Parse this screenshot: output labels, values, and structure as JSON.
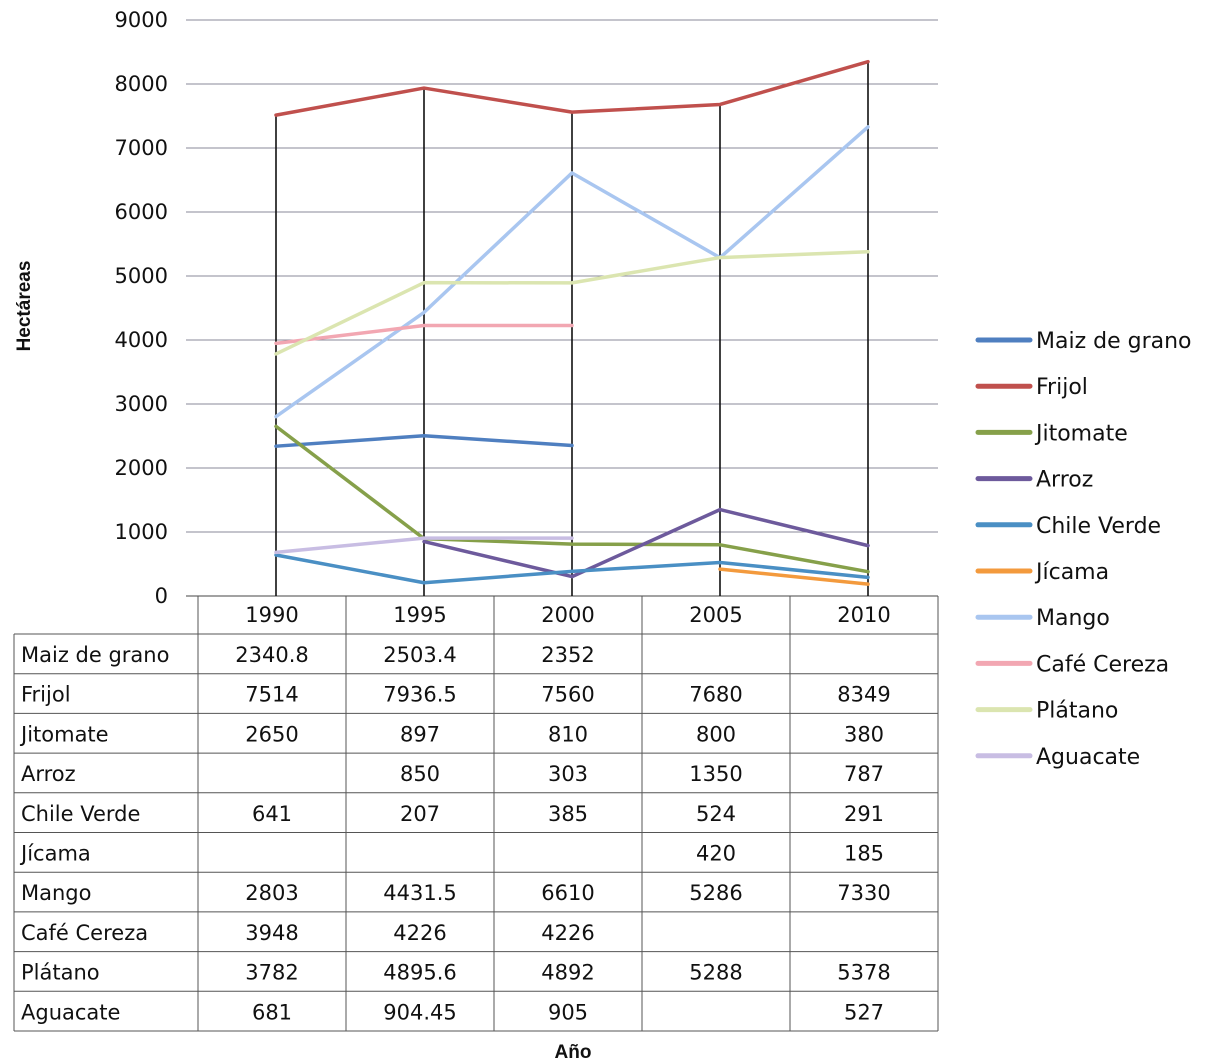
{
  "chart_data": {
    "type": "line",
    "title": "",
    "xlabel": "Año",
    "ylabel": "Hectáreas",
    "categories": [
      "1990",
      "1995",
      "2000",
      "2005",
      "2010"
    ],
    "ylim": [
      0,
      9000
    ],
    "yticks": [
      "0",
      "1000",
      "2000",
      "3000",
      "4000",
      "5000",
      "6000",
      "7000",
      "8000",
      "9000"
    ],
    "grid": true,
    "legend_position": "right",
    "data_table": true,
    "series": [
      {
        "name": "Maiz de grano",
        "color": "#4f7fc0",
        "values": [
          2340.8,
          2503.4,
          2352,
          null,
          null
        ],
        "labels": [
          "2340.8",
          "2503.4",
          "2352",
          "",
          ""
        ]
      },
      {
        "name": "Frijol",
        "color": "#c0504d",
        "values": [
          7514,
          7936.5,
          7560,
          7680,
          8349
        ],
        "labels": [
          "7514",
          "7936.5",
          "7560",
          "7680",
          "8349"
        ]
      },
      {
        "name": "Jitomate",
        "color": "#86a04a",
        "values": [
          2650,
          897,
          810,
          800,
          380
        ],
        "labels": [
          "2650",
          "897",
          "810",
          "800",
          "380"
        ]
      },
      {
        "name": "Arroz",
        "color": "#6d5a9c",
        "values": [
          null,
          850,
          303,
          1350,
          787
        ],
        "labels": [
          "",
          "850",
          "303",
          "1350",
          "787"
        ]
      },
      {
        "name": "Chile Verde",
        "color": "#4a8fc4",
        "values": [
          641,
          207,
          385,
          524,
          291
        ],
        "labels": [
          "641",
          "207",
          "385",
          "524",
          "291"
        ]
      },
      {
        "name": "Jícama",
        "color": "#f39a3d",
        "values": [
          null,
          null,
          null,
          420,
          185
        ],
        "labels": [
          "",
          "",
          "",
          "420",
          "185"
        ]
      },
      {
        "name": "Mango",
        "color": "#a9c6f0",
        "values": [
          2803,
          4431.5,
          6610,
          5286,
          7330
        ],
        "labels": [
          "2803",
          "4431.5",
          "6610",
          "5286",
          "7330"
        ]
      },
      {
        "name": "Café Cereza",
        "color": "#f2a7b2",
        "values": [
          3948,
          4226,
          4226,
          null,
          null
        ],
        "labels": [
          "3948",
          "4226",
          "4226",
          "",
          ""
        ]
      },
      {
        "name": "Plátano",
        "color": "#dbe5b0",
        "values": [
          3782,
          4895.6,
          4892,
          5288,
          5378
        ],
        "labels": [
          "3782",
          "4895.6",
          "4892",
          "5288",
          "5378"
        ]
      },
      {
        "name": "Aguacate",
        "color": "#c8bde3",
        "values": [
          681,
          904.45,
          905,
          null,
          527
        ],
        "labels": [
          "681",
          "904.45",
          "905",
          "",
          "527"
        ]
      }
    ]
  }
}
